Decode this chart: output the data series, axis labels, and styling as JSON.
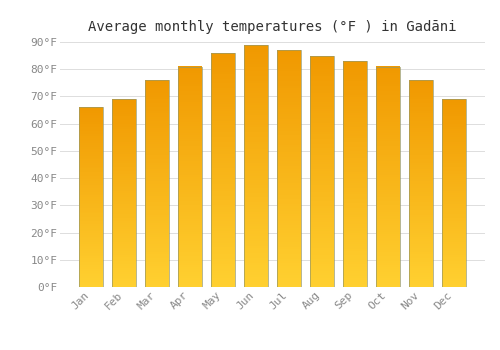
{
  "title": "Average monthly temperatures (°F ) in Gadāni",
  "months": [
    "Jan",
    "Feb",
    "Mar",
    "Apr",
    "May",
    "Jun",
    "Jul",
    "Aug",
    "Sep",
    "Oct",
    "Nov",
    "Dec"
  ],
  "values": [
    66,
    69,
    76,
    81,
    86,
    89,
    87,
    85,
    83,
    81,
    76,
    69
  ],
  "bar_color_bottom": "#FFD040",
  "bar_color_top": "#F5A000",
  "bar_edge_color": "#888844",
  "ylim": [
    0,
    90
  ],
  "yticks": [
    0,
    10,
    20,
    30,
    40,
    50,
    60,
    70,
    80,
    90
  ],
  "ytick_labels": [
    "0°F",
    "10°F",
    "20°F",
    "30°F",
    "40°F",
    "50°F",
    "60°F",
    "70°F",
    "80°F",
    "90°F"
  ],
  "background_color": "#FFFFFF",
  "grid_color": "#DDDDDD",
  "title_fontsize": 10,
  "tick_fontsize": 8,
  "bar_width": 0.72
}
